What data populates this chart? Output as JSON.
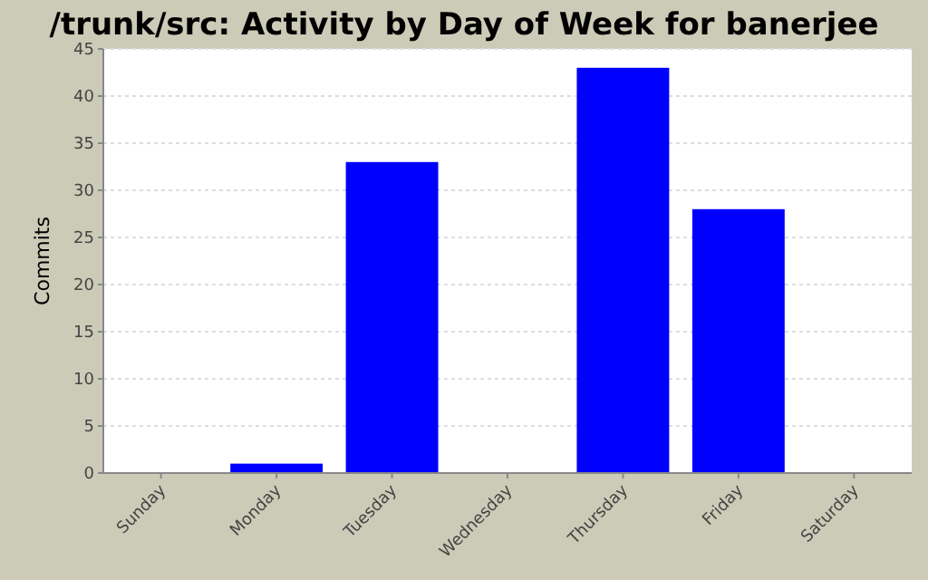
{
  "chart_data": {
    "type": "bar",
    "title": "/trunk/src: Activity by Day of Week for banerjee",
    "ylabel": "Commits",
    "categories": [
      "Sunday",
      "Monday",
      "Tuesday",
      "Wednesday",
      "Thursday",
      "Friday",
      "Saturday"
    ],
    "values": [
      0,
      1,
      33,
      0,
      43,
      28,
      0
    ],
    "color": "#0000ff",
    "ylim": [
      0,
      45
    ],
    "yticks": [
      0,
      5,
      10,
      15,
      20,
      25,
      30,
      35,
      40,
      45
    ],
    "grid": "y"
  }
}
